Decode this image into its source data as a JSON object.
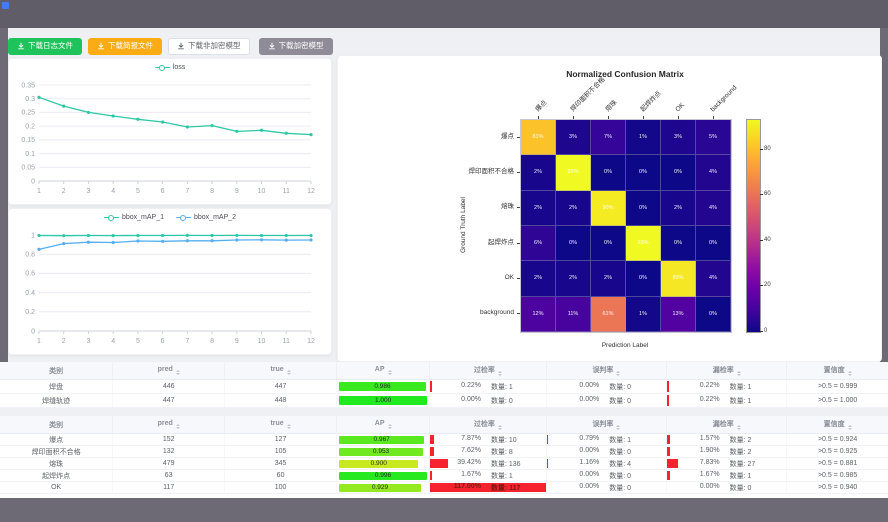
{
  "toolbar": {
    "buttons": [
      {
        "label": "下载日志文件",
        "variant": "green",
        "color": "#1fc35c"
      },
      {
        "label": "下载简报文件",
        "variant": "orange",
        "color": "#fbac14"
      },
      {
        "label": "下载非加密模型",
        "variant": "plain",
        "color": "#ffffff"
      },
      {
        "label": "下载加密模型",
        "variant": "gray",
        "color": "#8f8c98"
      }
    ]
  },
  "chart_data": [
    {
      "type": "line",
      "title": "loss",
      "x": [
        1,
        2,
        3,
        4,
        5,
        6,
        7,
        8,
        9,
        10,
        11,
        12
      ],
      "ylim": [
        0,
        0.35
      ],
      "yticks": [
        0,
        0.05,
        0.1,
        0.15,
        0.2,
        0.25,
        0.3,
        0.35
      ],
      "grid": true,
      "legend_position": "top",
      "series": [
        {
          "name": "loss",
          "color": "#2dc8a6",
          "values": [
            0.305,
            0.273,
            0.25,
            0.237,
            0.225,
            0.215,
            0.197,
            0.202,
            0.181,
            0.185,
            0.174,
            0.169
          ]
        }
      ]
    },
    {
      "type": "line",
      "title": "bbox_mAP",
      "x": [
        1,
        2,
        3,
        4,
        5,
        6,
        7,
        8,
        9,
        10,
        11,
        12
      ],
      "ylim": [
        0,
        1
      ],
      "yticks": [
        0,
        0.2,
        0.4,
        0.6,
        0.8,
        1
      ],
      "grid": true,
      "legend_position": "top",
      "series": [
        {
          "name": "bbox_mAP_1",
          "color": "#2dc8a6",
          "values": [
            0.995,
            0.993,
            0.995,
            0.994,
            0.995,
            0.995,
            0.996,
            0.995,
            0.996,
            0.995,
            0.995,
            0.995
          ]
        },
        {
          "name": "bbox_mAP_2",
          "color": "#54aef0",
          "values": [
            0.85,
            0.91,
            0.925,
            0.922,
            0.938,
            0.934,
            0.94,
            0.94,
            0.948,
            0.95,
            0.947,
            0.948
          ]
        }
      ]
    },
    {
      "type": "heatmap",
      "title": "Normalized Confusion Matrix",
      "xlabel": "Prediction Label",
      "ylabel": "Ground Truth Label",
      "classes": [
        "爆点",
        "焊印面积不合格",
        "熔珠",
        "起焊炸点",
        "OK",
        "background"
      ],
      "matrix": [
        [
          81,
          3,
          7,
          1,
          3,
          5
        ],
        [
          2,
          93,
          0,
          0,
          0,
          4
        ],
        [
          2,
          2,
          90,
          0,
          2,
          4
        ],
        [
          6,
          0,
          0,
          93,
          0,
          0
        ],
        [
          2,
          2,
          2,
          0,
          89,
          4
        ],
        [
          12,
          11,
          61,
          1,
          13,
          0
        ]
      ],
      "unit": "%",
      "vmax": 93,
      "colormap": "plasma",
      "colorbar_ticks": [
        0,
        20,
        40,
        60,
        80
      ],
      "legend_position": "right"
    }
  ],
  "tables": [
    {
      "headers": [
        "类别",
        "pred",
        "true",
        "AP",
        "过检率",
        "误判率",
        "漏检率",
        "置信度"
      ],
      "count_label": "数量:",
      "rows": [
        {
          "category": "焊盘",
          "pred": "446",
          "true": "447",
          "ap": "0.986",
          "over": {
            "pct": "0.22%",
            "value": 0.22,
            "count": "1"
          },
          "mis": {
            "pct": "0.00%",
            "value": 0,
            "count": "0"
          },
          "miss": {
            "pct": "0.22%",
            "value": 0.22,
            "count": "1"
          },
          "conf": ">0.5 = 0.999"
        },
        {
          "category": "焊缝轨迹",
          "pred": "447",
          "true": "448",
          "ap": "1.000",
          "over": {
            "pct": "0.00%",
            "value": 0,
            "count": "0"
          },
          "mis": {
            "pct": "0.00%",
            "value": 0,
            "count": "0"
          },
          "miss": {
            "pct": "0.22%",
            "value": 0.22,
            "count": "1"
          },
          "conf": ">0.5 = 1.000"
        }
      ]
    },
    {
      "headers": [
        "类别",
        "pred",
        "true",
        "AP",
        "过检率",
        "误判率",
        "漏检率",
        "置信度"
      ],
      "count_label": "数量:",
      "rows": [
        {
          "category": "爆点",
          "pred": "152",
          "true": "127",
          "ap": "0.967",
          "over": {
            "pct": "7.87%",
            "value": 7.87,
            "count": "10"
          },
          "mis": {
            "pct": "0.79%",
            "value": 0.79,
            "count": "1"
          },
          "miss": {
            "pct": "1.57%",
            "value": 1.57,
            "count": "2"
          },
          "conf": ">0.5 = 0.924"
        },
        {
          "category": "焊印面积不合格",
          "pred": "132",
          "true": "105",
          "ap": "0.953",
          "over": {
            "pct": "7.62%",
            "value": 7.62,
            "count": "8"
          },
          "mis": {
            "pct": "0.00%",
            "value": 0,
            "count": "0"
          },
          "miss": {
            "pct": "1.90%",
            "value": 1.9,
            "count": "2"
          },
          "conf": ">0.5 = 0.925"
        },
        {
          "category": "熔珠",
          "pred": "479",
          "true": "345",
          "ap": "0.900",
          "over": {
            "pct": "39.42%",
            "value": 39.42,
            "count": "136"
          },
          "mis": {
            "pct": "1.16%",
            "value": 1.16,
            "count": "4"
          },
          "miss": {
            "pct": "7.83%",
            "value": 7.83,
            "count": "27"
          },
          "conf": ">0.5 = 0.881"
        },
        {
          "category": "起焊炸点",
          "pred": "63",
          "true": "60",
          "ap": "0.996",
          "over": {
            "pct": "1.67%",
            "value": 1.67,
            "count": "1"
          },
          "mis": {
            "pct": "0.00%",
            "value": 0,
            "count": "0"
          },
          "miss": {
            "pct": "1.67%",
            "value": 1.67,
            "count": "1"
          },
          "conf": ">0.5 = 0.985"
        },
        {
          "category": "OK",
          "pred": "117",
          "true": "100",
          "ap": "0.929",
          "over": {
            "pct": "117.00%",
            "value": 117,
            "count": "117"
          },
          "mis": {
            "pct": "0.00%",
            "value": 0,
            "count": "0"
          },
          "miss": {
            "pct": "0.00%",
            "value": 0,
            "count": "0"
          },
          "conf": ">0.5 = 0.940"
        }
      ]
    }
  ],
  "colors": {
    "accent_teal": "#2dc8a6",
    "accent_blue": "#54aef0",
    "bar_red": "#f5232e",
    "frame_gray": "#6d6a76",
    "page_bg": "#eef0f4"
  }
}
